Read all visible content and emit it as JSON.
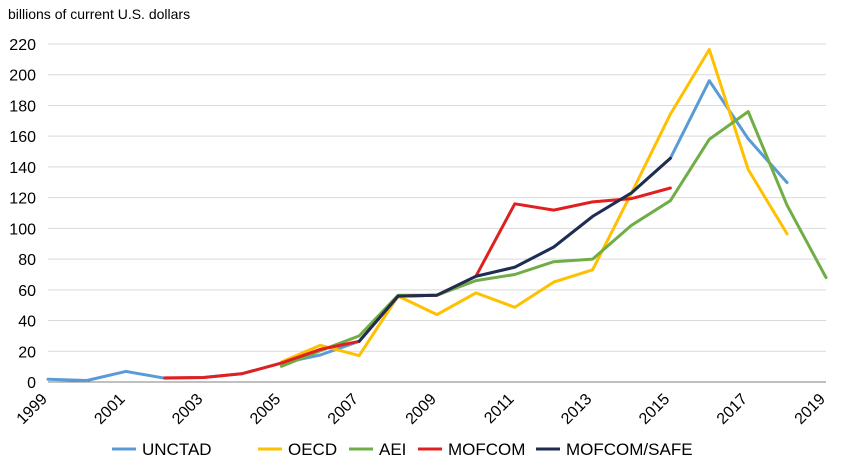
{
  "chart_data": {
    "type": "line",
    "title": "",
    "xlabel": "",
    "ylabel": "billions of current U.S. dollars",
    "xlim": [
      1999,
      2019
    ],
    "ylim": [
      0,
      220
    ],
    "x_ticks": [
      1999,
      2001,
      2003,
      2005,
      2007,
      2009,
      2011,
      2013,
      2015,
      2017,
      2019
    ],
    "y_ticks": [
      0,
      20,
      40,
      60,
      80,
      100,
      120,
      140,
      160,
      180,
      200,
      220
    ],
    "grid": "horizontal",
    "legend": "bottom",
    "series": [
      {
        "name": "UNCTAD",
        "color": "#5B9BD5",
        "points": [
          [
            1999,
            1.8
          ],
          [
            2000,
            1.0
          ],
          [
            2001,
            6.9
          ],
          [
            2002,
            2.5
          ],
          [
            2003,
            2.9
          ],
          [
            2004,
            5.5
          ],
          [
            2005,
            12.3
          ],
          [
            2006,
            17.6
          ],
          [
            2007,
            26.5
          ],
          [
            2008,
            55.9
          ],
          [
            2009,
            56.5
          ],
          [
            2010,
            68.8
          ],
          [
            2011,
            74.7
          ],
          [
            2012,
            87.8
          ],
          [
            2013,
            107.8
          ],
          [
            2014,
            123.1
          ],
          [
            2015,
            145.7
          ],
          [
            2016,
            196.1
          ],
          [
            2017,
            158.3
          ],
          [
            2018,
            129.8
          ]
        ]
      },
      {
        "name": "OECD",
        "color": "#FFC000",
        "points": [
          [
            2005,
            13.0
          ],
          [
            2006,
            23.9
          ],
          [
            2007,
            17.2
          ],
          [
            2008,
            56.0
          ],
          [
            2009,
            43.9
          ],
          [
            2010,
            58.0
          ],
          [
            2011,
            48.6
          ],
          [
            2012,
            65.0
          ],
          [
            2013,
            73.0
          ],
          [
            2014,
            123.0
          ],
          [
            2015,
            174.4
          ],
          [
            2016,
            216.4
          ],
          [
            2017,
            138.3
          ],
          [
            2018,
            96.4
          ]
        ]
      },
      {
        "name": "AEI",
        "color": "#70AD47",
        "points": [
          [
            2005,
            10.2
          ],
          [
            2006,
            20.4
          ],
          [
            2007,
            30.0
          ],
          [
            2008,
            56.5
          ],
          [
            2009,
            56.5
          ],
          [
            2010,
            66.0
          ],
          [
            2011,
            70.0
          ],
          [
            2012,
            78.3
          ],
          [
            2013,
            80.0
          ],
          [
            2014,
            102.0
          ],
          [
            2015,
            118.0
          ],
          [
            2016,
            158.0
          ],
          [
            2017,
            176.0
          ],
          [
            2018,
            115.0
          ],
          [
            2019,
            68.0
          ]
        ]
      },
      {
        "name": "MOFCOM",
        "color": "#E02020",
        "points": [
          [
            2002,
            2.7
          ],
          [
            2003,
            2.9
          ],
          [
            2004,
            5.5
          ],
          [
            2005,
            12.3
          ],
          [
            2006,
            21.2
          ],
          [
            2007,
            26.5
          ],
          [
            2008,
            55.9
          ],
          [
            2009,
            56.5
          ],
          [
            2010,
            68.8
          ],
          [
            2011,
            116.0
          ],
          [
            2012,
            111.9
          ],
          [
            2013,
            117.2
          ],
          [
            2014,
            119.4
          ],
          [
            2015,
            126.3
          ]
        ]
      },
      {
        "name": "MOFCOM/SAFE",
        "color": "#1F2D50",
        "points": [
          [
            2007,
            26.5
          ],
          [
            2008,
            55.9
          ],
          [
            2009,
            56.5
          ],
          [
            2010,
            68.8
          ],
          [
            2011,
            74.7
          ],
          [
            2012,
            87.8
          ],
          [
            2013,
            107.8
          ],
          [
            2014,
            123.1
          ],
          [
            2015,
            145.7
          ]
        ]
      }
    ]
  }
}
